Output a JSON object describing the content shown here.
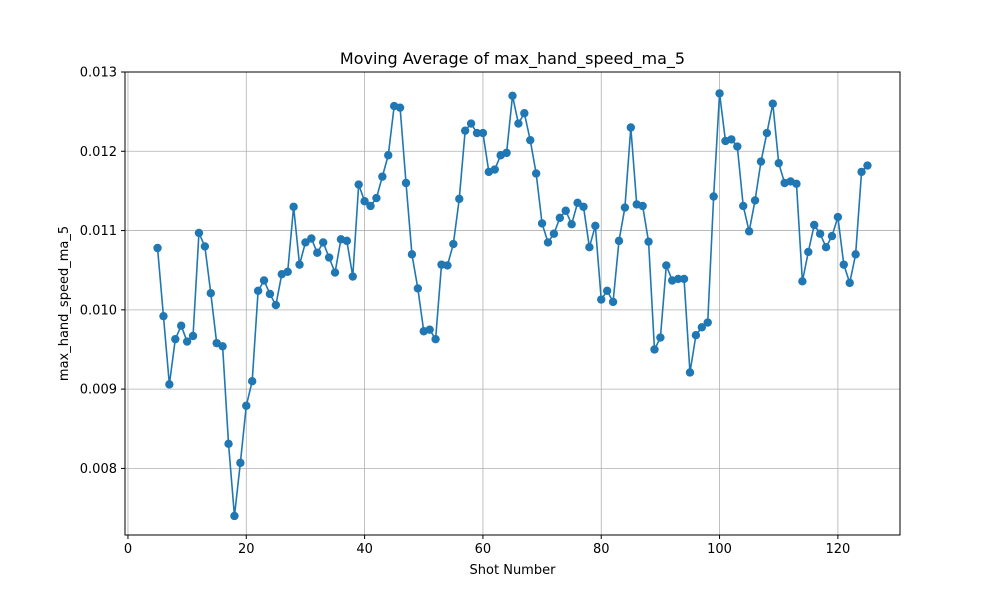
{
  "chart_data": {
    "type": "line",
    "title": "Moving Average of max_hand_speed_ma_5",
    "xlabel": "Shot Number",
    "ylabel": "max_hand_speed_ma_5",
    "xlim": [
      -0.5,
      130.5
    ],
    "ylim": [
      0.00716,
      0.013
    ],
    "xticks": [
      0,
      20,
      40,
      60,
      80,
      100,
      120
    ],
    "yticks": [
      0.008,
      0.009,
      0.01,
      0.011,
      0.012,
      0.013
    ],
    "ytick_labels": [
      "0.008",
      "0.009",
      "0.010",
      "0.011",
      "0.012",
      "0.013"
    ],
    "grid": true,
    "marker": "circle",
    "color": "#1f77b4",
    "x": [
      5,
      6,
      7,
      8,
      9,
      10,
      11,
      12,
      13,
      14,
      15,
      16,
      17,
      18,
      19,
      20,
      21,
      22,
      23,
      24,
      25,
      26,
      27,
      28,
      29,
      30,
      31,
      32,
      33,
      34,
      35,
      36,
      37,
      38,
      39,
      40,
      41,
      42,
      43,
      44,
      45,
      46,
      47,
      48,
      49,
      50,
      51,
      52,
      53,
      54,
      55,
      56,
      57,
      58,
      59,
      60,
      61,
      62,
      63,
      64,
      65,
      66,
      67,
      68,
      69,
      70,
      71,
      72,
      73,
      74,
      75,
      76,
      77,
      78,
      79,
      80,
      81,
      82,
      83,
      84,
      85,
      86,
      87,
      88,
      89,
      90,
      91,
      92,
      93,
      94,
      95,
      96,
      97,
      98,
      99,
      100,
      101,
      102,
      103,
      104,
      105,
      106,
      107,
      108,
      109,
      110,
      111,
      112,
      113,
      114,
      115,
      116,
      117,
      118,
      119,
      120,
      121,
      122,
      123,
      124,
      125
    ],
    "y": [
      0.01078,
      0.00992,
      0.00906,
      0.00963,
      0.0098,
      0.0096,
      0.00967,
      0.01097,
      0.0108,
      0.01021,
      0.00958,
      0.00954,
      0.00831,
      0.0074,
      0.00807,
      0.00879,
      0.0091,
      0.01024,
      0.01037,
      0.0102,
      0.01006,
      0.01045,
      0.01048,
      0.0113,
      0.01057,
      0.01085,
      0.0109,
      0.01072,
      0.01085,
      0.01066,
      0.01047,
      0.01089,
      0.01087,
      0.01042,
      0.01158,
      0.01137,
      0.01131,
      0.01141,
      0.01168,
      0.01195,
      0.01257,
      0.01255,
      0.0116,
      0.0107,
      0.01027,
      0.00973,
      0.00975,
      0.00963,
      0.01057,
      0.01056,
      0.01083,
      0.0114,
      0.01226,
      0.01235,
      0.01223,
      0.01223,
      0.01174,
      0.01177,
      0.01195,
      0.01198,
      0.0127,
      0.01235,
      0.01248,
      0.01214,
      0.01172,
      0.01109,
      0.01085,
      0.01096,
      0.01116,
      0.01125,
      0.01108,
      0.01135,
      0.0113,
      0.01079,
      0.01106,
      0.01013,
      0.01024,
      0.0101,
      0.01087,
      0.01129,
      0.0123,
      0.01133,
      0.01131,
      0.01086,
      0.0095,
      0.00965,
      0.01056,
      0.01037,
      0.01039,
      0.01039,
      0.00921,
      0.00968,
      0.00978,
      0.00984,
      0.01143,
      0.01273,
      0.01213,
      0.01215,
      0.01206,
      0.01131,
      0.01099,
      0.01138,
      0.01187,
      0.01223,
      0.0126,
      0.01185,
      0.0116,
      0.01162,
      0.01159,
      0.01036,
      0.01073,
      0.01107,
      0.01096,
      0.01079,
      0.01093,
      0.01117,
      0.01057,
      0.01034,
      0.0107,
      0.01174,
      0.01182
    ]
  }
}
